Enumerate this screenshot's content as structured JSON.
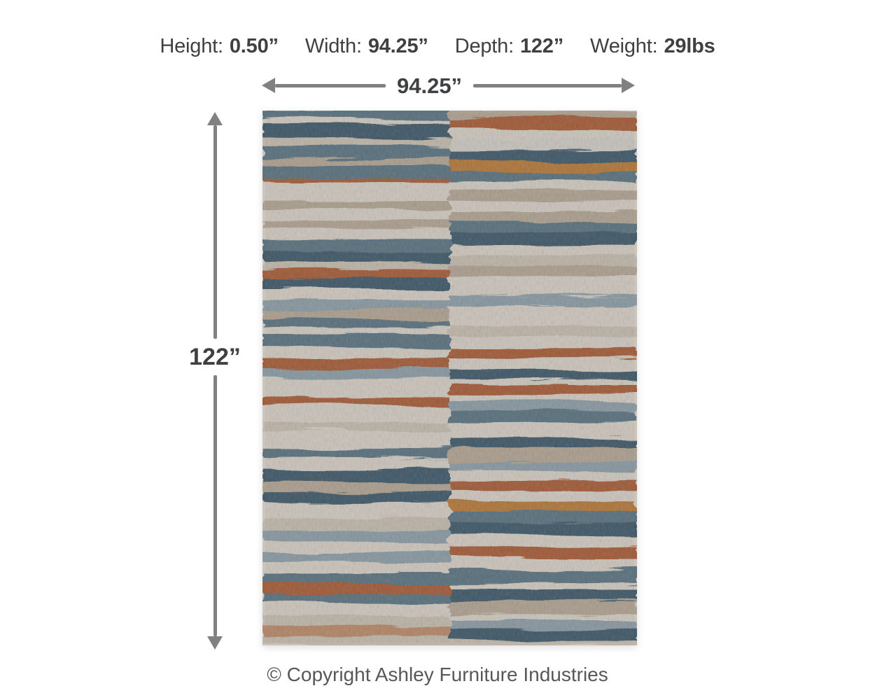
{
  "specs": {
    "items": [
      {
        "label": "Height:",
        "value": "0.50”"
      },
      {
        "label": "Width:",
        "value": "94.25”"
      },
      {
        "label": "Depth:",
        "value": "122”"
      },
      {
        "label": "Weight:",
        "value": "29lbs"
      }
    ]
  },
  "dimensions": {
    "width_label": "94.25”",
    "height_label": "122”"
  },
  "footer": {
    "copyright": "© Copyright Ashley Furniture Industries"
  },
  "colors": {
    "text": "#3f4042",
    "arrow": "#7f8183",
    "copyright": "#58585a"
  },
  "rug": {
    "background": "#cbc5bc",
    "palette": {
      "cream": "#cbc5bc",
      "beige": "#bdb5a9",
      "tan": "#aca090",
      "lightgray": "#c6c3bd",
      "slate": "#5d7480",
      "darkslate": "#455c6b",
      "bluegray": "#8a99a2",
      "rust": "#a25f3d",
      "amber": "#b0793f",
      "rustsoft": "#b3886a"
    },
    "left_stripes": [
      [
        12,
        "slate"
      ],
      [
        8,
        "cream"
      ],
      [
        20,
        "darkslate"
      ],
      [
        12,
        "beige"
      ],
      [
        16,
        "slate"
      ],
      [
        12,
        "tan"
      ],
      [
        16,
        "slate"
      ],
      [
        8,
        "rust"
      ],
      [
        26,
        "cream"
      ],
      [
        10,
        "tan"
      ],
      [
        18,
        "cream"
      ],
      [
        10,
        "tan"
      ],
      [
        17,
        "cream"
      ],
      [
        17,
        "slate"
      ],
      [
        16,
        "darkslate"
      ],
      [
        10,
        "beige"
      ],
      [
        10,
        "rust"
      ],
      [
        17,
        "darkslate"
      ],
      [
        15,
        "cream"
      ],
      [
        15,
        "bluegray"
      ],
      [
        13,
        "tan"
      ],
      [
        12,
        "slate"
      ],
      [
        8,
        "cream"
      ],
      [
        22,
        "slate"
      ],
      [
        12,
        "cream"
      ],
      [
        16,
        "rust"
      ],
      [
        12,
        "bluegray"
      ],
      [
        30,
        "cream"
      ],
      [
        10,
        "rust"
      ],
      [
        25,
        "cream"
      ],
      [
        12,
        "beige"
      ],
      [
        23,
        "cream"
      ],
      [
        15,
        "slate"
      ],
      [
        17,
        "cream"
      ],
      [
        18,
        "darkslate"
      ],
      [
        15,
        "tan"
      ],
      [
        15,
        "darkslate"
      ],
      [
        20,
        "cream"
      ],
      [
        20,
        "beige"
      ],
      [
        15,
        "bluegray"
      ],
      [
        15,
        "cream"
      ],
      [
        15,
        "bluegray"
      ],
      [
        15,
        "cream"
      ],
      [
        15,
        "slate"
      ],
      [
        13,
        "rust"
      ],
      [
        14,
        "slate"
      ],
      [
        18,
        "cream"
      ],
      [
        15,
        "beige"
      ],
      [
        15,
        "rustsoft"
      ],
      [
        12,
        "beige"
      ]
    ],
    "right_stripes": [
      [
        10,
        "tan"
      ],
      [
        16,
        "rust"
      ],
      [
        14,
        "cream"
      ],
      [
        16,
        "lightgray"
      ],
      [
        16,
        "darkslate"
      ],
      [
        14,
        "amber"
      ],
      [
        14,
        "slate"
      ],
      [
        12,
        "cream"
      ],
      [
        14,
        "tan"
      ],
      [
        16,
        "cream"
      ],
      [
        14,
        "tan"
      ],
      [
        16,
        "slate"
      ],
      [
        16,
        "darkslate"
      ],
      [
        14,
        "cream"
      ],
      [
        16,
        "beige"
      ],
      [
        14,
        "tan"
      ],
      [
        28,
        "cream"
      ],
      [
        14,
        "bluegray"
      ],
      [
        28,
        "cream"
      ],
      [
        15,
        "beige"
      ],
      [
        15,
        "cream"
      ],
      [
        15,
        "rust"
      ],
      [
        17,
        "cream"
      ],
      [
        13,
        "darkslate"
      ],
      [
        7,
        "cream"
      ],
      [
        12,
        "rust"
      ],
      [
        12,
        "cream"
      ],
      [
        12,
        "bluegray"
      ],
      [
        16,
        "slate"
      ],
      [
        22,
        "cream"
      ],
      [
        14,
        "darkslate"
      ],
      [
        20,
        "tan"
      ],
      [
        12,
        "bluegray"
      ],
      [
        14,
        "cream"
      ],
      [
        14,
        "rust"
      ],
      [
        15,
        "cream"
      ],
      [
        13,
        "amber"
      ],
      [
        16,
        "slate"
      ],
      [
        18,
        "darkslate"
      ],
      [
        16,
        "cream"
      ],
      [
        14,
        "rust"
      ],
      [
        18,
        "cream"
      ],
      [
        20,
        "slate"
      ],
      [
        8,
        "cream"
      ],
      [
        15,
        "darkslate"
      ],
      [
        20,
        "tan"
      ],
      [
        7,
        "cream"
      ],
      [
        13,
        "bluegray"
      ],
      [
        17,
        "darkslate"
      ],
      [
        5,
        "beige"
      ]
    ]
  }
}
